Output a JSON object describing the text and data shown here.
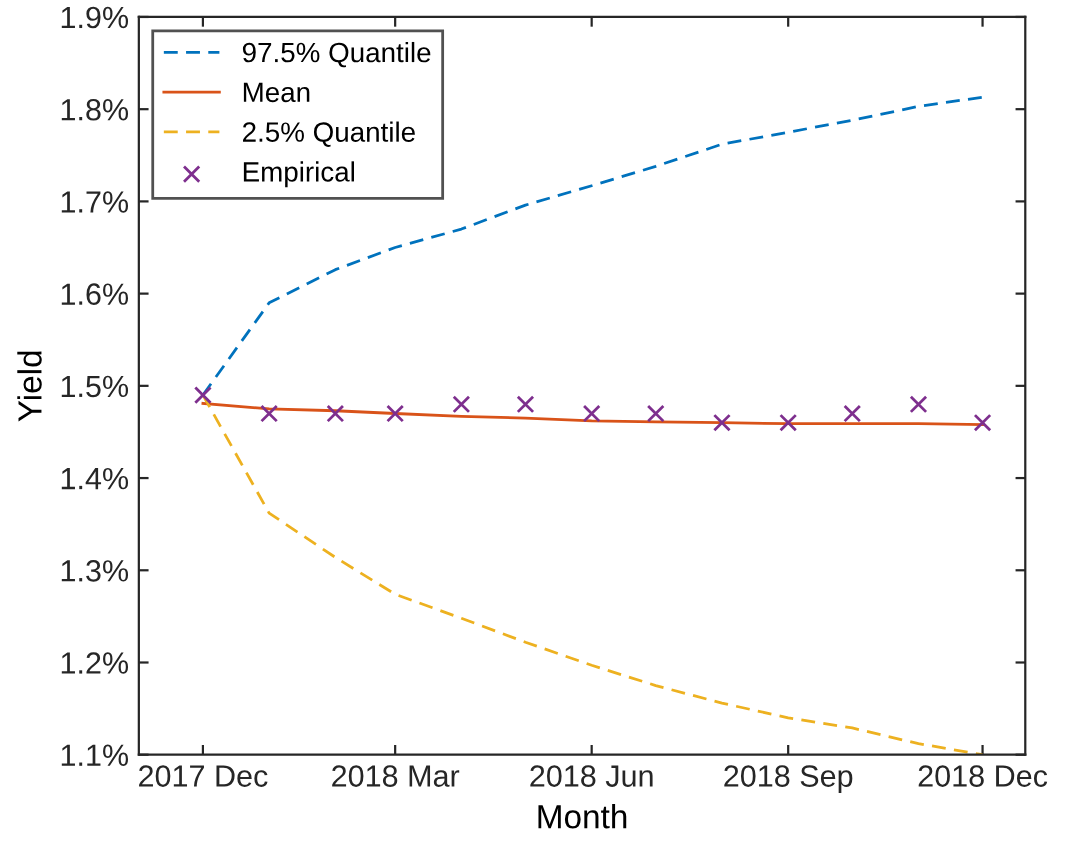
{
  "chart_data": {
    "type": "line",
    "xlabel": "Month",
    "ylabel": "Yield",
    "x": [
      "2017-12",
      "2018-01",
      "2018-02",
      "2018-03",
      "2018-04",
      "2018-05",
      "2018-06",
      "2018-07",
      "2018-08",
      "2018-09",
      "2018-10",
      "2018-11",
      "2018-12"
    ],
    "series": [
      {
        "name": "97.5% Quantile",
        "color": "#0072bd",
        "line_style": "dashed",
        "values": [
          1.49,
          1.59,
          1.626,
          1.65,
          1.67,
          1.696,
          1.717,
          1.738,
          1.762,
          1.775,
          1.788,
          1.803,
          1.813
        ]
      },
      {
        "name": "Mean",
        "color": "#d95319",
        "line_style": "solid",
        "values": [
          1.481,
          1.475,
          1.473,
          1.47,
          1.467,
          1.465,
          1.462,
          1.461,
          1.46,
          1.459,
          1.459,
          1.459,
          1.458
        ]
      },
      {
        "name": "2.5% Quantile",
        "color": "#edb120",
        "line_style": "dashed",
        "values": [
          1.49,
          1.362,
          1.314,
          1.274,
          1.248,
          1.222,
          1.197,
          1.175,
          1.156,
          1.14,
          1.129,
          1.112,
          1.1
        ]
      },
      {
        "name": "Empirical",
        "type": "scatter",
        "marker": "cross",
        "color": "#7e2f8e",
        "values": [
          1.49,
          1.47,
          1.47,
          1.47,
          1.48,
          1.48,
          1.47,
          1.47,
          1.46,
          1.46,
          1.47,
          1.48,
          1.46
        ]
      }
    ],
    "xlim": [
      "2017-11-01",
      "2018-12-21"
    ],
    "xticks": [
      {
        "value": "2017-12",
        "label": "2017 Dec"
      },
      {
        "value": "2018-03",
        "label": "2018 Mar"
      },
      {
        "value": "2018-06",
        "label": "2018 Jun"
      },
      {
        "value": "2018-09",
        "label": "2018 Sep"
      },
      {
        "value": "2018-12",
        "label": "2018 Dec"
      }
    ],
    "ylim": [
      1.1,
      1.9
    ],
    "yticks": [
      {
        "value": 1.1,
        "label": "1.1%"
      },
      {
        "value": 1.2,
        "label": "1.2%"
      },
      {
        "value": 1.3,
        "label": "1.3%"
      },
      {
        "value": 1.4,
        "label": "1.4%"
      },
      {
        "value": 1.5,
        "label": "1.5%"
      },
      {
        "value": 1.6,
        "label": "1.6%"
      },
      {
        "value": 1.7,
        "label": "1.7%"
      },
      {
        "value": 1.8,
        "label": "1.8%"
      },
      {
        "value": 1.9,
        "label": "1.9%"
      }
    ],
    "legend": "top left",
    "grid": false
  }
}
